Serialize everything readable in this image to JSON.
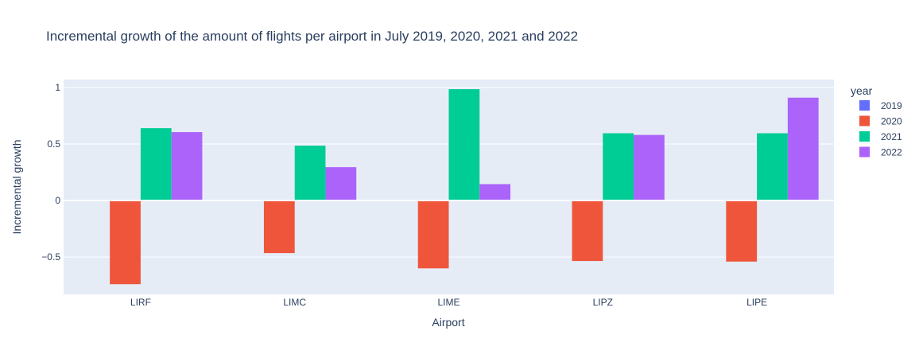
{
  "chart_data": {
    "type": "bar",
    "title": "Incremental growth of the amount of flights per airport in July 2019, 2020, 2021 and 2022",
    "xlabel": "Airport",
    "ylabel": "Incremental growth",
    "categories": [
      "LIRF",
      "LIMC",
      "LIME",
      "LIPZ",
      "LIPE"
    ],
    "y_ticks": [
      {
        "value": 1,
        "label": "1"
      },
      {
        "value": 0.5,
        "label": "0.5"
      },
      {
        "value": 0,
        "label": "0"
      },
      {
        "value": -0.5,
        "label": "−0.5"
      }
    ],
    "ylim": [
      -0.83,
      1.07
    ],
    "grid": true,
    "plot_background": "#e5ecf6",
    "legend": {
      "title": "year",
      "placement": "right"
    },
    "series": [
      {
        "name": "2019",
        "color": "#636efa",
        "values": [
          0,
          0,
          0,
          0,
          0
        ]
      },
      {
        "name": "2020",
        "color": "#ef553b",
        "values": [
          -0.74,
          -0.465,
          -0.6,
          -0.535,
          -0.54
        ]
      },
      {
        "name": "2021",
        "color": "#00cc96",
        "values": [
          0.64,
          0.485,
          0.985,
          0.595,
          0.595
        ]
      },
      {
        "name": "2022",
        "color": "#ab63fa",
        "values": [
          0.605,
          0.295,
          0.145,
          0.58,
          0.91
        ]
      }
    ]
  }
}
